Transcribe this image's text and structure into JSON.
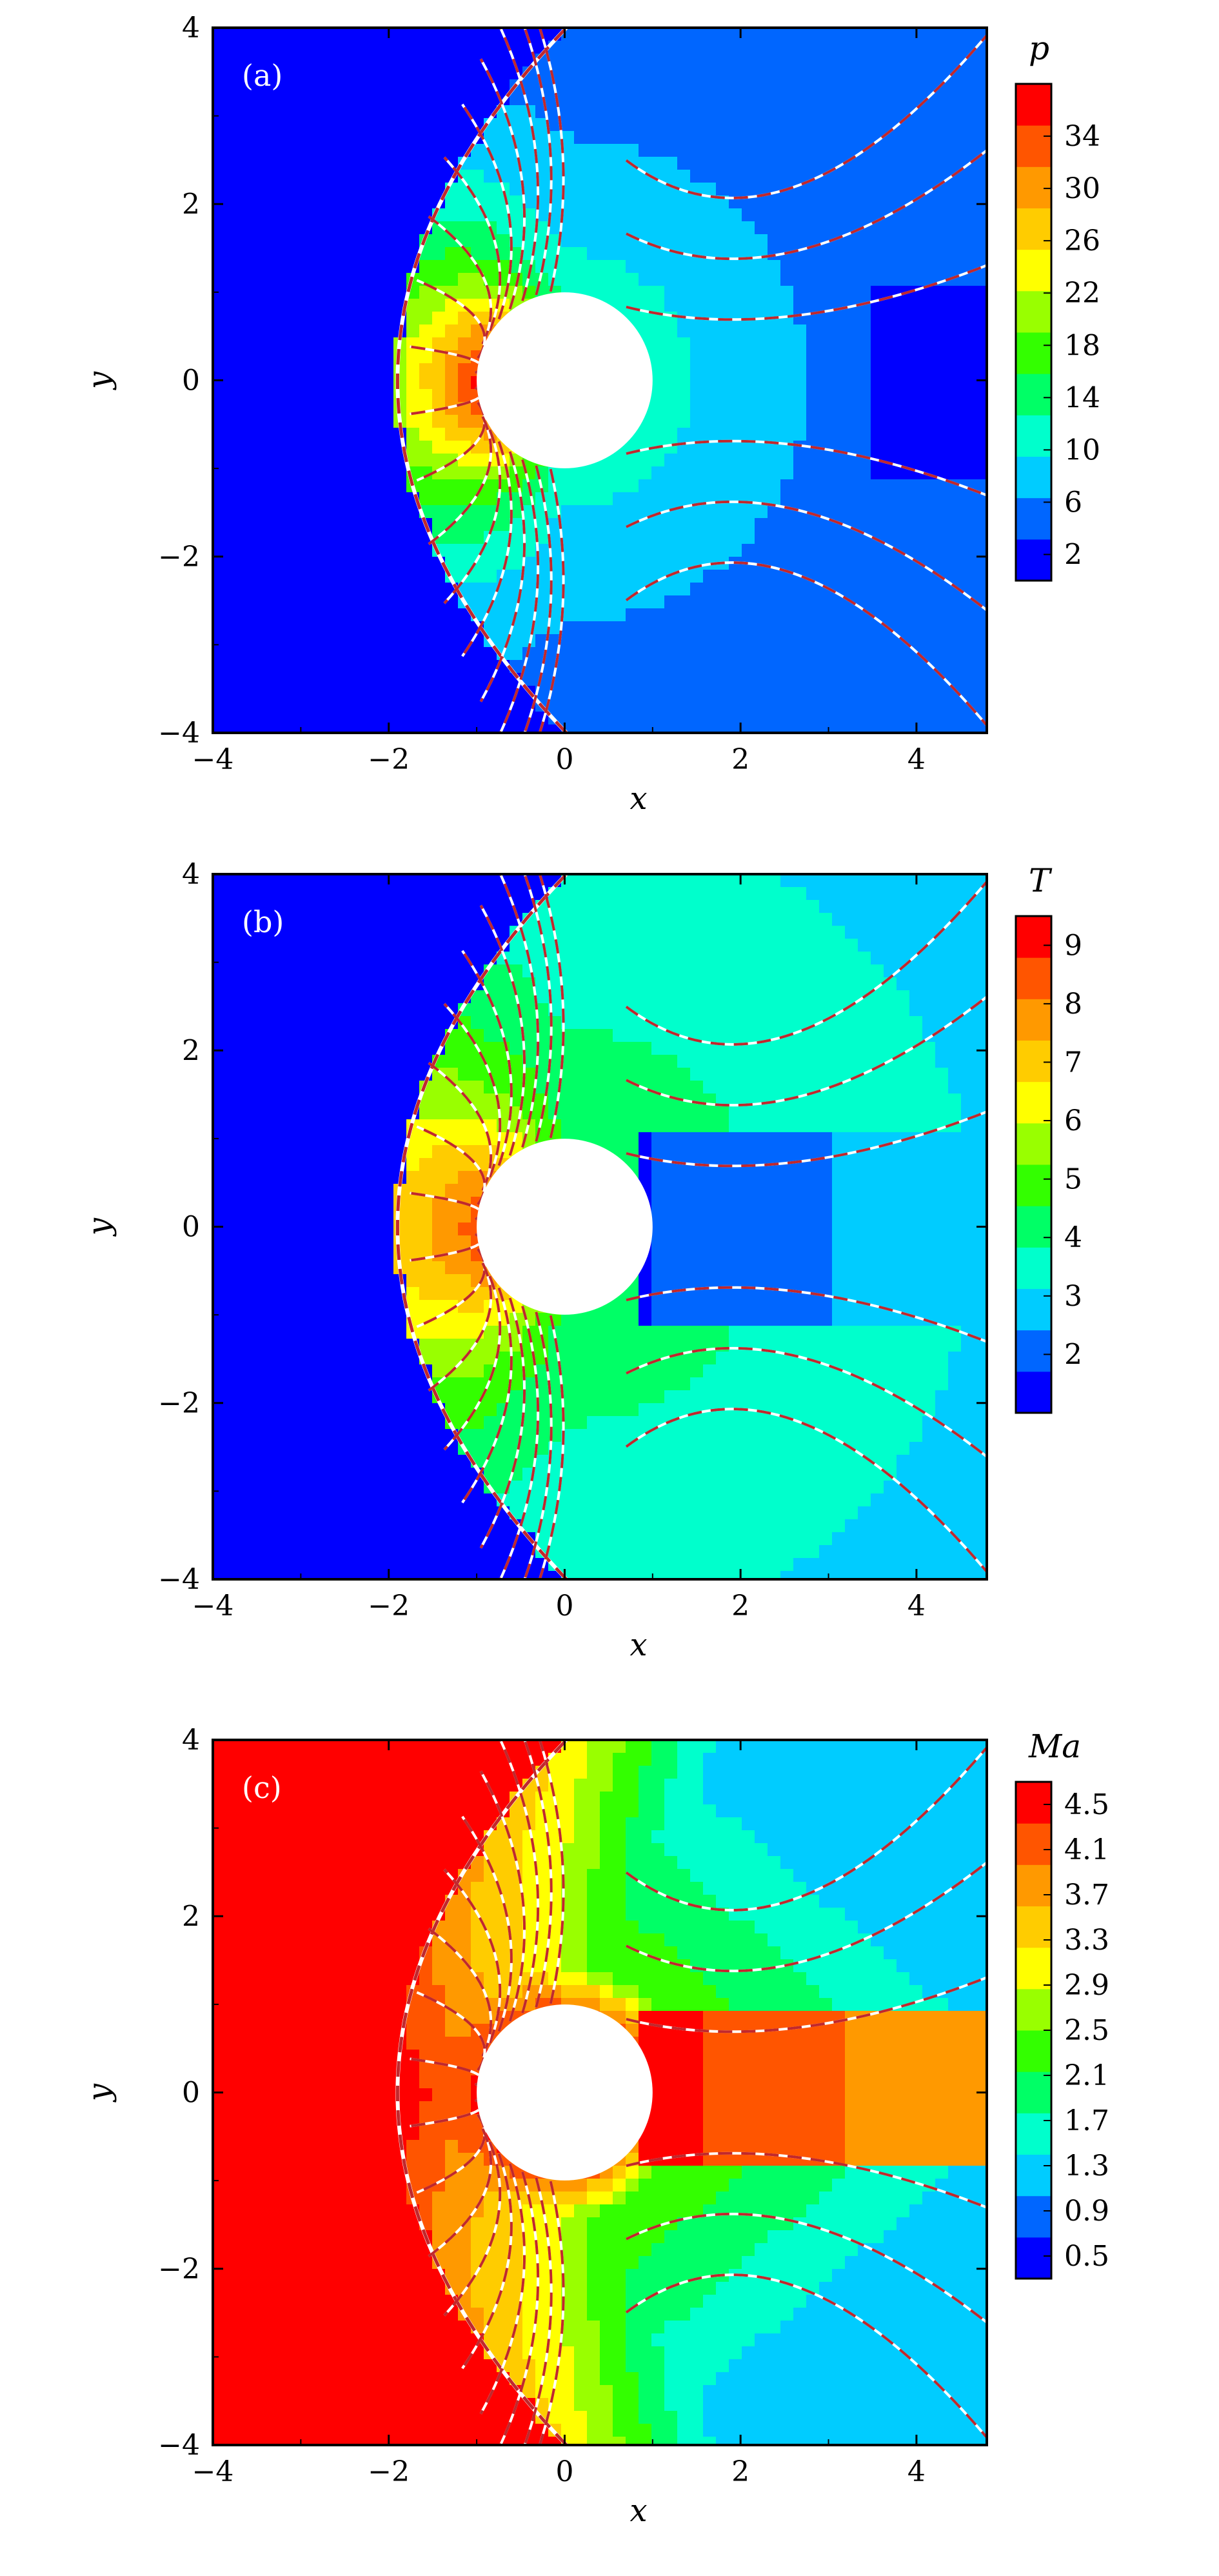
{
  "chart_data": [
    {
      "type": "heatmap",
      "panel_label": "(a)",
      "xlabel": "x",
      "ylabel": "y",
      "xlim": [
        -4,
        4.8
      ],
      "ylim": [
        -4,
        4
      ],
      "xticks": [
        -4,
        -2,
        0,
        2,
        4
      ],
      "yticks": [
        -4,
        -2,
        0,
        2,
        4
      ],
      "colorbar": {
        "title": "p",
        "range": [
          0,
          38
        ],
        "ticks": [
          2,
          6,
          10,
          14,
          18,
          22,
          26,
          30,
          34
        ]
      },
      "field": "pressure",
      "freestream_value": 1,
      "peak_value": 35,
      "body": {
        "shape": "circle",
        "center": [
          0,
          0
        ],
        "radius": 1
      }
    },
    {
      "type": "heatmap",
      "panel_label": "(b)",
      "xlabel": "x",
      "ylabel": "y",
      "xlim": [
        -4,
        4.8
      ],
      "ylim": [
        -4,
        4
      ],
      "xticks": [
        -4,
        -2,
        0,
        2,
        4
      ],
      "yticks": [
        -4,
        -2,
        0,
        2,
        4
      ],
      "colorbar": {
        "title": "T",
        "range": [
          1,
          9.5
        ],
        "ticks": [
          2,
          3,
          4,
          5,
          6,
          7,
          8,
          9
        ]
      },
      "field": "temperature",
      "freestream_value": 1,
      "peak_value": 8.5,
      "body": {
        "shape": "circle",
        "center": [
          0,
          0
        ],
        "radius": 1
      }
    },
    {
      "type": "heatmap",
      "panel_label": "(c)",
      "xlabel": "x",
      "ylabel": "y",
      "xlim": [
        -4,
        4.8
      ],
      "ylim": [
        -4,
        4
      ],
      "xticks": [
        -4,
        -2,
        0,
        2,
        4
      ],
      "yticks": [
        -4,
        -2,
        0,
        2,
        4
      ],
      "colorbar": {
        "title": "Ma",
        "range": [
          0.3,
          4.7
        ],
        "ticks": [
          "0.5",
          "0.9",
          "1.3",
          "1.7",
          "2.1",
          "2.5",
          "2.9",
          "3.3",
          "3.7",
          "4.1",
          "4.5"
        ]
      },
      "field": "mach",
      "freestream_value": 4.6,
      "peak_value": 4.6,
      "body": {
        "shape": "circle",
        "center": [
          0,
          0
        ],
        "radius": 1
      }
    }
  ],
  "colormap": [
    "#0000ff",
    "#0066ff",
    "#00ccff",
    "#00ffcc",
    "#00ff66",
    "#33ff00",
    "#99ff00",
    "#ffff00",
    "#ffcc00",
    "#ff9900",
    "#ff5500",
    "#ff0000"
  ],
  "line_colors": {
    "solid": "#ffffff",
    "dashed": "#c0282d",
    "body": "#ffffff",
    "frame": "#000000"
  }
}
